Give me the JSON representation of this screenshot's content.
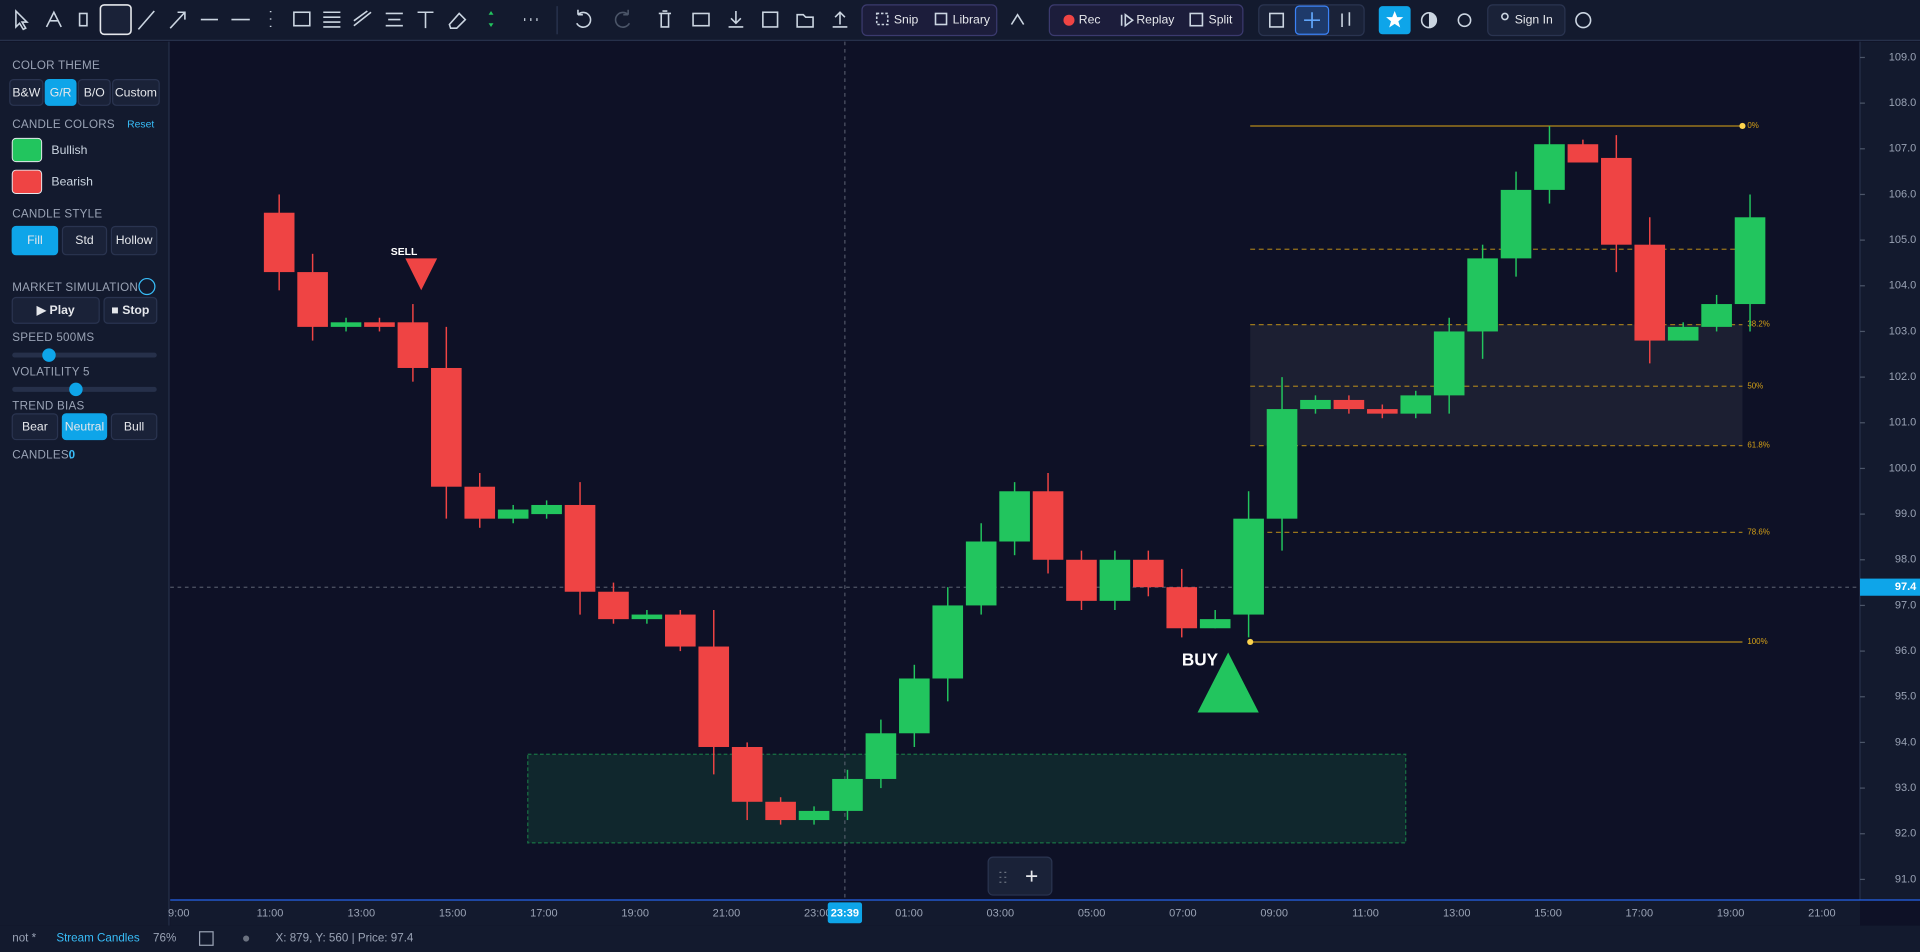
{
  "toolbar": {
    "snip": "Snip",
    "library": "Library",
    "rec": "Rec",
    "replay": "Replay",
    "split": "Split",
    "sign_in": "Sign In"
  },
  "sidebar": {
    "color_theme": {
      "title": "COLOR THEME",
      "options": [
        "B&W",
        "G/R",
        "B/O",
        "Custom"
      ]
    },
    "candle_colors": {
      "title": "CANDLE COLORS",
      "reset": "Reset",
      "bullish": "Bullish",
      "bearish": "Bearish"
    },
    "candle_style": {
      "title": "CANDLE STYLE",
      "options": [
        "Fill",
        "Std",
        "Hollow"
      ]
    },
    "market_simulation": {
      "title": "MARKET SIMULATION",
      "play": "▶ Play",
      "stop": "■ Stop",
      "speed": "SPEED 500MS",
      "volatility": "VOLATILITY 5",
      "trend_bias": "TREND BIAS",
      "trend_options": [
        "Bear",
        "Neutral",
        "Bull"
      ],
      "candles_label": "CANDLES:",
      "candles_value": "0"
    }
  },
  "chart": {
    "type": "candlestick",
    "bull_color": "#22c55e",
    "bear_color": "#ef4444",
    "time_labels": [
      "9:00",
      "11:00",
      "13:00",
      "15:00",
      "17:00",
      "19:00",
      "21:00",
      "23:00",
      "01:00",
      "03:00",
      "05:00",
      "07:00",
      "09:00",
      "11:00",
      "13:00",
      "15:00",
      "17:00",
      "19:00",
      "21:00"
    ],
    "open": [
      105.6,
      104.3,
      103.1,
      103.2,
      103.2,
      102.2,
      99.6,
      98.9,
      99.0,
      99.2,
      97.3,
      96.7,
      96.8,
      96.1,
      93.9,
      92.7,
      92.3,
      92.5,
      93.2,
      94.2,
      95.4,
      97.0,
      98.4,
      99.5,
      98.0,
      97.1,
      98.0,
      97.4,
      96.5,
      96.8,
      98.9,
      101.3,
      101.5,
      101.3,
      101.2,
      101.6,
      103.0,
      104.6,
      106.1,
      107.1,
      106.8,
      104.9,
      102.8,
      103.1,
      103.6
    ],
    "high": [
      106.0,
      104.7,
      103.3,
      103.3,
      103.6,
      103.1,
      99.9,
      99.2,
      99.3,
      99.7,
      97.5,
      96.9,
      96.9,
      96.9,
      94.0,
      92.8,
      92.6,
      93.4,
      94.5,
      95.7,
      97.4,
      98.8,
      99.7,
      99.9,
      98.2,
      98.2,
      98.2,
      97.8,
      96.9,
      99.5,
      102.0,
      101.6,
      101.6,
      101.4,
      101.7,
      103.3,
      104.9,
      106.5,
      107.5,
      107.2,
      107.3,
      105.5,
      103.2,
      103.8,
      106.0
    ],
    "low": [
      103.9,
      102.8,
      103.0,
      103.0,
      101.9,
      98.9,
      98.7,
      98.8,
      98.9,
      96.8,
      96.6,
      96.6,
      96.0,
      93.3,
      92.3,
      92.2,
      92.2,
      92.3,
      93.0,
      93.9,
      94.9,
      96.8,
      98.1,
      97.7,
      96.9,
      96.9,
      97.2,
      96.3,
      96.5,
      96.3,
      98.2,
      101.2,
      101.2,
      101.1,
      101.1,
      101.2,
      102.4,
      104.2,
      105.8,
      106.7,
      104.3,
      102.3,
      102.8,
      103.0,
      103.0
    ],
    "close": [
      104.3,
      103.1,
      103.2,
      103.1,
      102.2,
      99.6,
      98.9,
      99.1,
      99.2,
      97.3,
      96.7,
      96.8,
      96.1,
      93.9,
      92.7,
      92.3,
      92.5,
      93.2,
      94.2,
      95.4,
      97.0,
      98.4,
      99.5,
      98.0,
      97.1,
      98.0,
      97.4,
      96.5,
      96.7,
      98.9,
      101.3,
      101.5,
      101.3,
      101.2,
      101.6,
      103.0,
      104.6,
      106.1,
      107.1,
      106.7,
      104.9,
      102.8,
      103.1,
      103.6,
      105.5
    ],
    "ylim": [
      90.55,
      109.32
    ],
    "yticks": [
      {
        "value": 109,
        "label": "109.0"
      },
      {
        "value": 108,
        "label": "108.0"
      },
      {
        "value": 107,
        "label": "107.0"
      },
      {
        "value": 106,
        "label": "106.0"
      },
      {
        "value": 105,
        "label": "105.0"
      },
      {
        "value": 104,
        "label": "104.0"
      },
      {
        "value": 103,
        "label": "103.0"
      },
      {
        "value": 102,
        "label": "102.0"
      },
      {
        "value": 101,
        "label": "101.0"
      },
      {
        "value": 100,
        "label": "100.0"
      },
      {
        "value": 99,
        "label": "99.0"
      },
      {
        "value": 98,
        "label": "98.0"
      },
      {
        "value": 97,
        "label": "97.0"
      },
      {
        "value": 96,
        "label": "96.0"
      },
      {
        "value": 95,
        "label": "95.0"
      },
      {
        "value": 94,
        "label": "94.0"
      },
      {
        "value": 93,
        "label": "93.0"
      },
      {
        "value": 92,
        "label": "92.0"
      },
      {
        "value": 91,
        "label": "91.0"
      }
    ],
    "fib": [
      {
        "label": "0%",
        "price": 107.5
      },
      {
        "price": 104.8
      },
      {
        "label": "38.2%",
        "price": 103.15
      },
      {
        "label": "50%",
        "price": 101.8
      },
      {
        "label": "61.8%",
        "price": 100.5
      },
      {
        "label": "78.6%",
        "price": 98.6
      },
      {
        "label": "100%",
        "price": 96.2
      }
    ],
    "zone": {
      "top": 93.74,
      "bottom": 91.8
    },
    "sell": {
      "label": "SELL",
      "price": 104.6
    },
    "buy": {
      "label": "BUY",
      "price": 95.3
    },
    "crosshair": {
      "price": 97.4,
      "price_label": "97.4",
      "time_label": "23:39"
    }
  },
  "status": {
    "file": "not *",
    "stream": "Stream Candles",
    "zoom": "76%",
    "coords": "X: 879, Y: 560 | Price: 97.4"
  }
}
